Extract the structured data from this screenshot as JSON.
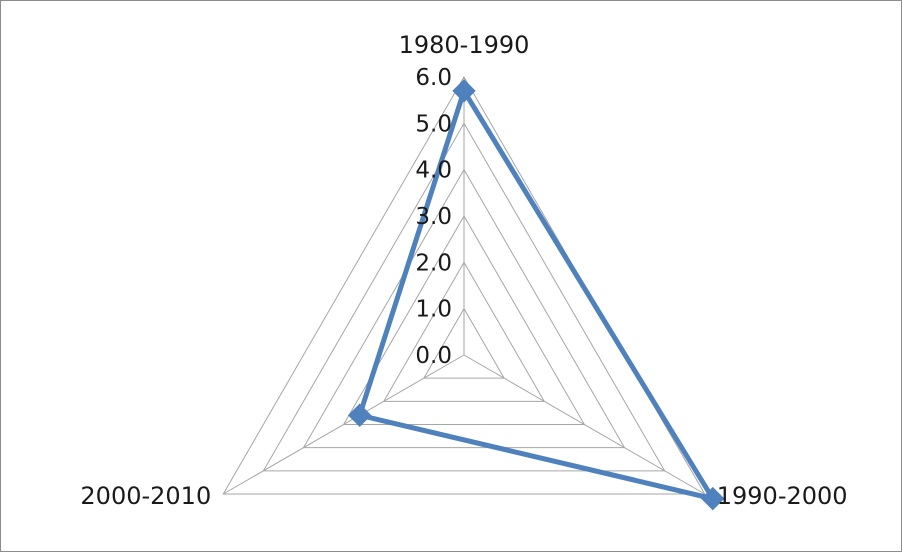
{
  "chart_data": {
    "type": "radar",
    "categories": [
      "1980-1990",
      "1990-2000",
      "2000-2010"
    ],
    "series": [
      {
        "values": [
          5.7,
          6.2,
          2.6
        ]
      }
    ],
    "r_range": [
      0,
      6.0
    ],
    "ticks": [
      "0.0",
      "1.0",
      "2.0",
      "3.0",
      "4.0",
      "5.0",
      "6.0"
    ],
    "grid": true,
    "legend": "none",
    "colors": {
      "series": "#4f81bd",
      "grid": "#a6a6a6",
      "text": "#1a1a1a"
    },
    "marker": "diamond"
  }
}
